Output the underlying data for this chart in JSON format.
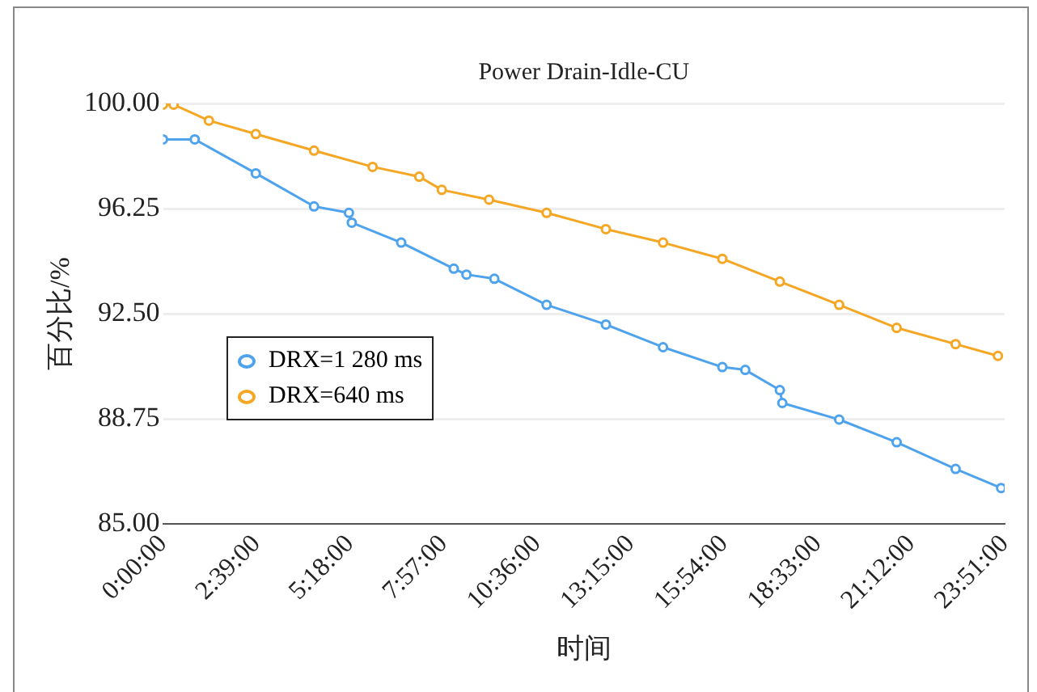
{
  "chart_data": {
    "type": "line",
    "title": "Power Drain-Idle-CU",
    "xlabel": "时间",
    "ylabel": "百分比/%",
    "xlim": [
      0,
      23.85
    ],
    "xticks": [
      {
        "value": 0,
        "label": "0:00:00"
      },
      {
        "value": 2.65,
        "label": "2:39:00"
      },
      {
        "value": 5.3,
        "label": "5:18:00"
      },
      {
        "value": 7.95,
        "label": "7:57:00"
      },
      {
        "value": 10.6,
        "label": "10:36:00"
      },
      {
        "value": 13.25,
        "label": "13:15:00"
      },
      {
        "value": 15.9,
        "label": "15:54:00"
      },
      {
        "value": 18.55,
        "label": "18:33:00"
      },
      {
        "value": 21.2,
        "label": "21:12:00"
      },
      {
        "value": 23.85,
        "label": "23:51:00"
      }
    ],
    "ylim": [
      85,
      100
    ],
    "yticks": [
      {
        "value": 85,
        "label": "85.00"
      },
      {
        "value": 88.75,
        "label": "88.75"
      },
      {
        "value": 92.5,
        "label": "92.50"
      },
      {
        "value": 96.25,
        "label": "96.25"
      },
      {
        "value": 100,
        "label": "100.00"
      }
    ],
    "grid": "y",
    "legend": "center left",
    "marker": "circle",
    "line_style": "solid",
    "series": [
      {
        "name": "DRX=1 280 ms",
        "color": "#4ea3ec",
        "x": [
          0,
          0.9,
          2.63,
          4.28,
          5.27,
          5.35,
          6.75,
          8.24,
          8.6,
          9.39,
          10.87,
          12.55,
          14.17,
          15.85,
          16.5,
          17.48,
          17.55,
          19.16,
          20.79,
          22.46,
          23.75
        ],
        "values": [
          98.72,
          98.72,
          97.51,
          96.33,
          96.1,
          95.75,
          95.04,
          94.11,
          93.9,
          93.75,
          92.82,
          92.12,
          91.31,
          90.6,
          90.5,
          89.78,
          89.32,
          88.73,
          87.92,
          86.97,
          86.29
        ]
      },
      {
        "name": "DRX=640 ms",
        "color": "#f5a623",
        "x": [
          0,
          0.3,
          1.3,
          2.63,
          4.28,
          5.94,
          7.26,
          7.9,
          9.24,
          10.87,
          12.55,
          14.17,
          15.85,
          17.48,
          19.16,
          20.79,
          22.46,
          23.66
        ],
        "values": [
          99.96,
          99.96,
          99.39,
          98.91,
          98.32,
          97.74,
          97.39,
          96.92,
          96.57,
          96.1,
          95.52,
          95.04,
          94.46,
          93.65,
          92.82,
          92.0,
          91.42,
          91.0
        ]
      }
    ]
  }
}
